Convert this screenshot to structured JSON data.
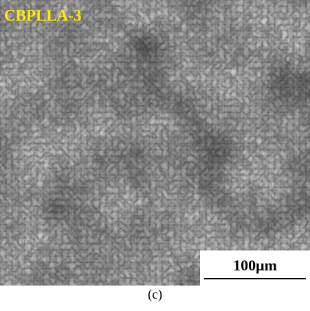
{
  "image": {
    "label": "CBPLLA-3",
    "scale_bar": "100μm"
  },
  "caption": "(c)"
}
